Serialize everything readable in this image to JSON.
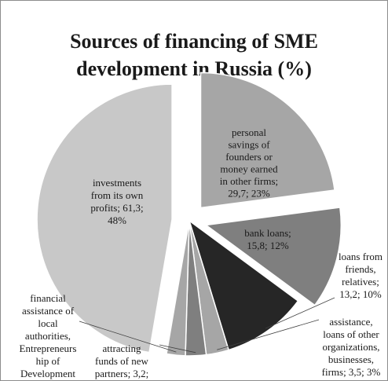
{
  "chart_data": {
    "type": "pie",
    "title_lines": [
      "Sources of financing of SME",
      "development in Russia (%)"
    ],
    "slices": [
      {
        "label_lines": [
          "personal",
          "savings of",
          "founders or",
          "money earned",
          "in other firms;",
          "29,7; 23%"
        ],
        "value": 29.7,
        "percent": 23,
        "color": "#a6a6a6",
        "exploded": true
      },
      {
        "label_lines": [
          "bank loans;",
          "15,8; 12%"
        ],
        "value": 15.8,
        "percent": 12,
        "color": "#7f7f7f",
        "exploded": true
      },
      {
        "label_lines": [
          "loans from",
          "friends,",
          "relatives;",
          "13,2; 10%"
        ],
        "value": 13.2,
        "percent": 10,
        "color": "#262626",
        "exploded": false
      },
      {
        "label_lines": [
          "assistance,",
          "loans of other",
          "organizations,",
          "businesses,",
          "firms; 3,5; 3%"
        ],
        "value": 3.5,
        "percent": 3,
        "color": "#a6a6a6",
        "exploded": false
      },
      {
        "label_lines": [
          "attracting",
          "funds of new",
          "partners; 3,2;"
        ],
        "value": 3.2,
        "percent": 2,
        "color": "#7f7f7f",
        "exploded": false
      },
      {
        "label_lines": [
          "financial",
          "assistance of",
          "local",
          "authorities,",
          "Entrepreneurs",
          "hip of",
          "Development"
        ],
        "value": 2.9,
        "percent": 2,
        "color": "#a6a6a6",
        "exploded": false
      },
      {
        "label_lines": [
          "investments",
          "from its own",
          "profits; 61,3;",
          "48%"
        ],
        "value": 61.3,
        "percent": 48,
        "color": "#c8c8c8",
        "exploded": true
      }
    ]
  }
}
